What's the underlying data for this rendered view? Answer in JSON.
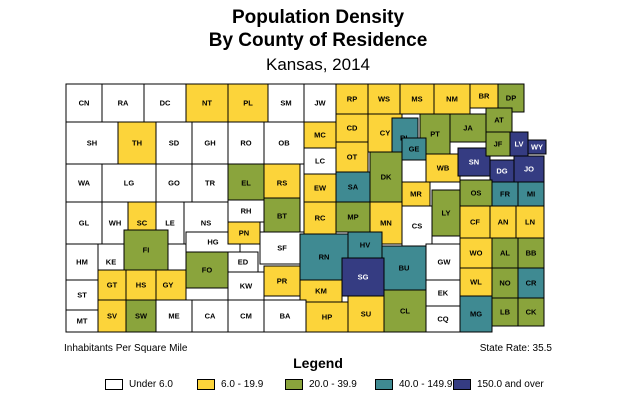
{
  "title": {
    "line1": "Population Density",
    "line2": "By County of Residence",
    "line3": "Kansas, 2014"
  },
  "footnote_left": "Inhabitants Per Square Mile",
  "footnote_right": "State Rate: 35.5",
  "legend": {
    "heading": "Legend",
    "items": [
      {
        "label": "Under 6.0",
        "color": "#ffffff"
      },
      {
        "label": "6.0 - 19.9",
        "color": "#fcd43a"
      },
      {
        "label": "20.0 - 39.9",
        "color": "#8aa43c"
      },
      {
        "label": "40.0 - 149.9",
        "color": "#3f8a92"
      },
      {
        "label": "150.0 and over",
        "color": "#353c82"
      }
    ]
  },
  "counties": [
    {
      "code": "CN",
      "class": 0
    },
    {
      "code": "RA",
      "class": 0
    },
    {
      "code": "DC",
      "class": 0
    },
    {
      "code": "NT",
      "class": 1
    },
    {
      "code": "PL",
      "class": 1
    },
    {
      "code": "SM",
      "class": 0
    },
    {
      "code": "JW",
      "class": 0
    },
    {
      "code": "RP",
      "class": 1
    },
    {
      "code": "WS",
      "class": 1
    },
    {
      "code": "MS",
      "class": 1
    },
    {
      "code": "NM",
      "class": 1
    },
    {
      "code": "BR",
      "class": 1
    },
    {
      "code": "DP",
      "class": 2
    },
    {
      "code": "SH",
      "class": 0
    },
    {
      "code": "TH",
      "class": 1
    },
    {
      "code": "SD",
      "class": 0
    },
    {
      "code": "GH",
      "class": 0
    },
    {
      "code": "RO",
      "class": 0
    },
    {
      "code": "OB",
      "class": 0
    },
    {
      "code": "MC",
      "class": 1
    },
    {
      "code": "CD",
      "class": 1
    },
    {
      "code": "CY",
      "class": 1
    },
    {
      "code": "PT",
      "class": 2
    },
    {
      "code": "JA",
      "class": 2
    },
    {
      "code": "AT",
      "class": 2
    },
    {
      "code": "LV",
      "class": 4
    },
    {
      "code": "WY",
      "class": 4
    },
    {
      "code": "WA",
      "class": 0
    },
    {
      "code": "LG",
      "class": 0
    },
    {
      "code": "GO",
      "class": 0
    },
    {
      "code": "TR",
      "class": 0
    },
    {
      "code": "EL",
      "class": 2
    },
    {
      "code": "RS",
      "class": 1
    },
    {
      "code": "LC",
      "class": 0
    },
    {
      "code": "OT",
      "class": 1
    },
    {
      "code": "RL",
      "class": 3
    },
    {
      "code": "GE",
      "class": 3
    },
    {
      "code": "WB",
      "class": 1
    },
    {
      "code": "SN",
      "class": 4
    },
    {
      "code": "JF",
      "class": 2
    },
    {
      "code": "DG",
      "class": 4
    },
    {
      "code": "JO",
      "class": 4
    },
    {
      "code": "EW",
      "class": 1
    },
    {
      "code": "SA",
      "class": 3
    },
    {
      "code": "DK",
      "class": 2
    },
    {
      "code": "MR",
      "class": 1
    },
    {
      "code": "OS",
      "class": 2
    },
    {
      "code": "FR",
      "class": 3
    },
    {
      "code": "MI",
      "class": 3
    },
    {
      "code": "GL",
      "class": 0
    },
    {
      "code": "WH",
      "class": 0
    },
    {
      "code": "SC",
      "class": 1
    },
    {
      "code": "LE",
      "class": 0
    },
    {
      "code": "NS",
      "class": 0
    },
    {
      "code": "RH",
      "class": 0
    },
    {
      "code": "BT",
      "class": 2
    },
    {
      "code": "RC",
      "class": 1
    },
    {
      "code": "MP",
      "class": 2
    },
    {
      "code": "MN",
      "class": 1
    },
    {
      "code": "CS",
      "class": 0
    },
    {
      "code": "LY",
      "class": 2
    },
    {
      "code": "CF",
      "class": 1
    },
    {
      "code": "AN",
      "class": 1
    },
    {
      "code": "LN",
      "class": 1
    },
    {
      "code": "HM",
      "class": 0
    },
    {
      "code": "KE",
      "class": 0
    },
    {
      "code": "FI",
      "class": 2
    },
    {
      "code": "HG",
      "class": 0
    },
    {
      "code": "PN",
      "class": 1
    },
    {
      "code": "SF",
      "class": 0
    },
    {
      "code": "RN",
      "class": 3
    },
    {
      "code": "HV",
      "class": 3
    },
    {
      "code": "BU",
      "class": 3
    },
    {
      "code": "GW",
      "class": 0
    },
    {
      "code": "WO",
      "class": 1
    },
    {
      "code": "AL",
      "class": 2
    },
    {
      "code": "BB",
      "class": 2
    },
    {
      "code": "ED",
      "class": 0
    },
    {
      "code": "GY",
      "class": 1
    },
    {
      "code": "FO",
      "class": 2
    },
    {
      "code": "SG",
      "class": 4
    },
    {
      "code": "WL",
      "class": 1
    },
    {
      "code": "NO",
      "class": 2
    },
    {
      "code": "CR",
      "class": 3
    },
    {
      "code": "ST",
      "class": 0
    },
    {
      "code": "GT",
      "class": 1
    },
    {
      "code": "HS",
      "class": 1
    },
    {
      "code": "KW",
      "class": 0
    },
    {
      "code": "PR",
      "class": 1
    },
    {
      "code": "KM",
      "class": 1
    },
    {
      "code": "EK",
      "class": 0
    },
    {
      "code": "LB",
      "class": 2
    },
    {
      "code": "MT",
      "class": 0
    },
    {
      "code": "SV",
      "class": 1
    },
    {
      "code": "SW",
      "class": 2
    },
    {
      "code": "ME",
      "class": 0
    },
    {
      "code": "CA",
      "class": 0
    },
    {
      "code": "CM",
      "class": 0
    },
    {
      "code": "BA",
      "class": 0
    },
    {
      "code": "HP",
      "class": 1
    },
    {
      "code": "SU",
      "class": 1
    },
    {
      "code": "CL",
      "class": 2
    },
    {
      "code": "CQ",
      "class": 0
    },
    {
      "code": "MG",
      "class": 3
    },
    {
      "code": "CK",
      "class": 2
    }
  ]
}
